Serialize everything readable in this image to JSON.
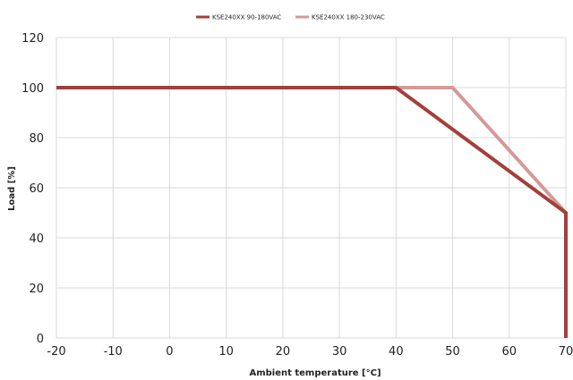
{
  "chart_data": {
    "type": "line",
    "title": "",
    "xlabel": "Ambient temperature [°C]",
    "ylabel": "Load [%]",
    "xlim": [
      -20,
      70
    ],
    "ylim": [
      0,
      120
    ],
    "xticks": [
      -20,
      -10,
      0,
      10,
      20,
      30,
      40,
      50,
      60,
      70
    ],
    "yticks": [
      0,
      20,
      40,
      60,
      80,
      100,
      120
    ],
    "xtick_labels": [
      "-20",
      "-10",
      "0",
      "10",
      "20",
      "30",
      "40",
      "50",
      "60",
      "70"
    ],
    "ytick_labels": [
      "0",
      "20",
      "40",
      "60",
      "80",
      "100",
      "120"
    ],
    "grid": true,
    "legend_position": "top-center",
    "series": [
      {
        "name": "KSE240XX 90-180VAC",
        "color": "#a0403c",
        "x": [
          -20,
          40,
          70,
          70
        ],
        "y": [
          100,
          100,
          50,
          0
        ]
      },
      {
        "name": "KSE240XX 180-230VAC",
        "color": "#d49a98",
        "x": [
          -20,
          50,
          70,
          70
        ],
        "y": [
          100,
          100,
          50,
          0
        ]
      }
    ]
  }
}
